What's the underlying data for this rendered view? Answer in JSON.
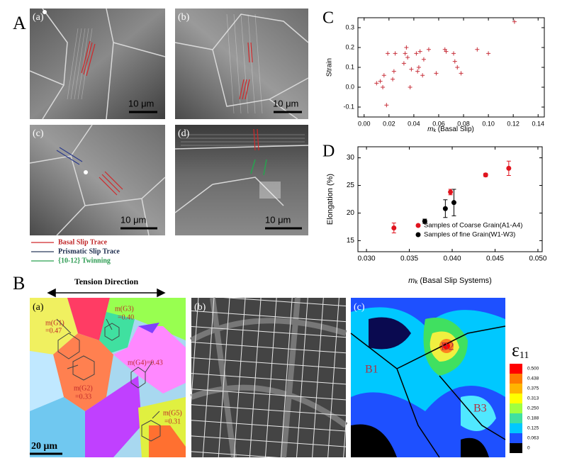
{
  "panel_labels": {
    "A": "A",
    "B": "B",
    "C": "C",
    "D": "D"
  },
  "panel_a": {
    "subpanels": [
      "(a)",
      "(b)",
      "(c)",
      "(d)"
    ],
    "scale_bars": [
      "10 μm",
      "10 μm",
      "10 μm",
      "10 μm"
    ],
    "legend": [
      "Basal Slip Trace",
      "Prismatic Slip Trace",
      "{10-12} Twinning"
    ]
  },
  "chart_data": [
    {
      "type": "scatter",
      "ylabel": "Strain",
      "xlabel_symbol": "m",
      "xlabel_sub": "k",
      "xlabel_rest": " (Basal Slip)",
      "xlim": [
        -0.005,
        0.145
      ],
      "ylim": [
        -0.15,
        0.35
      ],
      "xticks": [
        {
          "value": 0,
          "label": "0.00"
        },
        0.02,
        0.04,
        0.06,
        0.08,
        {
          "value": 0.1,
          "label": "0.10"
        },
        0.12,
        0.14
      ],
      "yticks": [
        -0.1,
        {
          "value": 0,
          "label": "0.0"
        },
        0.1,
        0.2,
        0.3
      ],
      "color": "#c8323c",
      "x": [
        0.121,
        0.1,
        0.091,
        0.078,
        0.075,
        0.073,
        0.072,
        0.066,
        0.065,
        0.058,
        0.052,
        0.048,
        0.047,
        0.045,
        0.044,
        0.043,
        0.042,
        0.038,
        0.037,
        0.035,
        0.034,
        0.033,
        0.032,
        0.025,
        0.024,
        0.023,
        0.019,
        0.018,
        0.016,
        0.015,
        0.013,
        0.01
      ],
      "values": [
        0.33,
        0.17,
        0.19,
        0.07,
        0.1,
        0.13,
        0.17,
        0.18,
        0.19,
        0.07,
        0.19,
        0.14,
        0.06,
        0.18,
        0.1,
        0.08,
        0.17,
        0.09,
        0.0,
        0.15,
        0.2,
        0.17,
        0.12,
        0.17,
        0.08,
        0.04,
        0.17,
        -0.09,
        0.06,
        0.0,
        0.03,
        0.02
      ]
    },
    {
      "type": "errorbar",
      "ylabel": "Elongation (%)",
      "xlabel_symbol": "m",
      "xlabel_sub": "k",
      "xlabel_rest": " (Basal Slip Systems)",
      "xlim": [
        0.029,
        0.0505
      ],
      "ylim": [
        13,
        32
      ],
      "xticks": [
        {
          "value": 0.03,
          "label": "0.030"
        },
        0.035,
        {
          "value": 0.04,
          "label": "0.040"
        },
        0.045,
        {
          "value": 0.05,
          "label": "0.050"
        }
      ],
      "yticks": [
        15,
        20,
        25,
        30
      ],
      "series": [
        {
          "name": "Samples of Coarse Grain(A1-A4)",
          "color": "#e0141e",
          "x": [
            0.0332,
            0.0398,
            0.0439,
            0.0466
          ],
          "values": [
            17.3,
            23.8,
            26.9,
            28.1
          ],
          "errors": [
            0.9,
            0.5,
            0.3,
            1.3
          ]
        },
        {
          "name": "Samples of fine Grain(W1-W3)",
          "color": "#000000",
          "x": [
            0.0368,
            0.0392,
            0.0402
          ],
          "values": [
            18.5,
            20.8,
            21.9
          ],
          "errors": [
            0.4,
            1.6,
            2.4
          ]
        }
      ]
    }
  ],
  "panel_b": {
    "tension": "Tension Direction",
    "subpanels": [
      "(a)",
      "(b)",
      "(c)"
    ],
    "grain_labels": [
      "m(G1)",
      "=0.47",
      "m(G3)",
      "=0.40",
      "m(G4)=0.43",
      "m(G2)",
      "=0.33",
      "m(G5)",
      "=0.31"
    ],
    "scale_bar": "20 μm",
    "band_labels": [
      "B1",
      "B2",
      "B3"
    ],
    "colorbar_title": "ε",
    "colorbar_sub": "11",
    "colorbar_ticks": [
      "0.500",
      "0.438",
      "0.375",
      "0.313",
      "0.250",
      "0.188",
      "0.125",
      "0.063",
      "0"
    ]
  }
}
